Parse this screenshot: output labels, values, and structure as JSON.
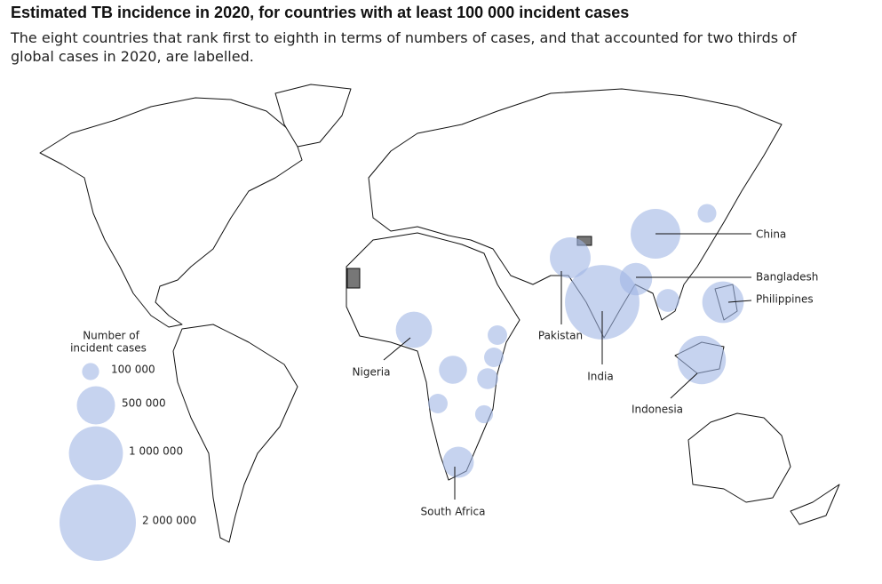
{
  "title": "Estimated TB incidence in 2020, for countries with at least 100 000 incident cases",
  "subtitle_lines": [
    "The eight countries that rank first to eighth in terms of numbers of cases, and that accounted for two thirds of",
    "global cases in 2020, are labelled."
  ],
  "legend": {
    "title_lines": [
      "Number of",
      "incident cases"
    ],
    "entries": [
      {
        "value": 100000,
        "label": "100 000"
      },
      {
        "value": 500000,
        "label": "500 000"
      },
      {
        "value": 1000000,
        "label": "1 000 000"
      },
      {
        "value": 2000000,
        "label": "2 000 000"
      }
    ]
  },
  "bubbles": [
    {
      "label": "India",
      "value": 1900000
    },
    {
      "label": "China",
      "value": 850000
    },
    {
      "label": "Indonesia",
      "value": 800000
    },
    {
      "label": "Philippines",
      "value": 590000
    },
    {
      "label": "Pakistan",
      "value": 570000
    },
    {
      "label": "Nigeria",
      "value": 450000
    },
    {
      "label": "Bangladesh",
      "value": 360000
    },
    {
      "label": "South Africa",
      "value": 330000
    },
    {
      "value": 270000
    },
    {
      "value": 130000
    },
    {
      "value": 150000
    },
    {
      "value": 130000
    },
    {
      "value": 110000
    },
    {
      "value": 130000
    },
    {
      "value": 180000
    },
    {
      "value": 120000
    }
  ]
}
